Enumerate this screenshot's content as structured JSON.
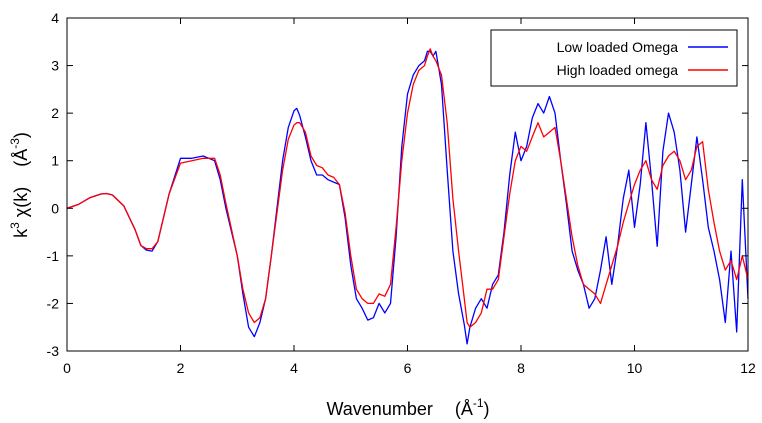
{
  "chart_data": {
    "type": "line",
    "xlabel": "Wavenumber",
    "xunit": "(Å",
    "xunit_sup": "-1",
    "xunit_close": ")",
    "ylabel": "k",
    "ylabel_sup": "3",
    "ylabel_rest": " χ(k)",
    "yunit": "(Å",
    "yunit_sup": "-3",
    "yunit_close": ")",
    "xlim": [
      0,
      12
    ],
    "ylim": [
      -3,
      4
    ],
    "xticks": [
      "0",
      "2",
      "4",
      "6",
      "8",
      "10",
      "12"
    ],
    "yticks": [
      "-3",
      "-2",
      "-1",
      "0",
      "1",
      "2",
      "3",
      "4"
    ],
    "grid": false,
    "legend_position": "top-right",
    "series": [
      {
        "name": "Low loaded Omega",
        "color": "#0000ff",
        "x": [
          0,
          0.2,
          0.4,
          0.6,
          0.7,
          0.8,
          1.0,
          1.2,
          1.3,
          1.4,
          1.5,
          1.6,
          1.8,
          2.0,
          2.2,
          2.4,
          2.6,
          2.7,
          2.8,
          3.0,
          3.1,
          3.2,
          3.3,
          3.4,
          3.5,
          3.6,
          3.8,
          3.9,
          4.0,
          4.05,
          4.1,
          4.2,
          4.3,
          4.4,
          4.5,
          4.6,
          4.7,
          4.8,
          4.9,
          5.0,
          5.1,
          5.2,
          5.3,
          5.4,
          5.5,
          5.6,
          5.7,
          5.8,
          5.9,
          6.0,
          6.1,
          6.2,
          6.3,
          6.35,
          6.4,
          6.45,
          6.5,
          6.6,
          6.7,
          6.8,
          6.9,
          7.0,
          7.05,
          7.1,
          7.2,
          7.3,
          7.4,
          7.5,
          7.6,
          7.7,
          7.8,
          7.9,
          8.0,
          8.1,
          8.2,
          8.3,
          8.4,
          8.5,
          8.6,
          8.7,
          8.8,
          8.9,
          9.0,
          9.1,
          9.2,
          9.3,
          9.4,
          9.5,
          9.6,
          9.7,
          9.8,
          9.9,
          10.0,
          10.1,
          10.2,
          10.3,
          10.4,
          10.5,
          10.6,
          10.7,
          10.8,
          10.9,
          11.0,
          11.1,
          11.2,
          11.3,
          11.4,
          11.5,
          11.6,
          11.7,
          11.8,
          11.9,
          12.0
        ],
        "y": [
          0,
          0.08,
          0.22,
          0.3,
          0.31,
          0.28,
          0.05,
          -0.45,
          -0.78,
          -0.88,
          -0.9,
          -0.7,
          0.3,
          1.05,
          1.05,
          1.1,
          1.0,
          0.6,
          0.0,
          -1.0,
          -1.8,
          -2.5,
          -2.7,
          -2.4,
          -1.9,
          -1.0,
          1.0,
          1.7,
          2.05,
          2.1,
          1.95,
          1.5,
          1.0,
          0.7,
          0.7,
          0.6,
          0.55,
          0.5,
          -0.2,
          -1.2,
          -1.9,
          -2.1,
          -2.35,
          -2.3,
          -2.0,
          -2.2,
          -2.0,
          -0.6,
          1.3,
          2.4,
          2.8,
          3.0,
          3.1,
          3.3,
          3.3,
          3.2,
          3.3,
          2.6,
          0.8,
          -0.9,
          -1.8,
          -2.45,
          -2.85,
          -2.5,
          -2.1,
          -1.9,
          -2.1,
          -1.6,
          -1.4,
          -0.5,
          0.7,
          1.6,
          1.0,
          1.3,
          1.9,
          2.2,
          2.0,
          2.35,
          2.0,
          1.0,
          0.1,
          -0.9,
          -1.3,
          -1.6,
          -2.1,
          -1.9,
          -1.3,
          -0.6,
          -1.6,
          -0.8,
          0.2,
          0.8,
          -0.4,
          0.5,
          1.8,
          0.6,
          -0.8,
          1.2,
          2.0,
          1.6,
          0.8,
          -0.5,
          0.5,
          1.5,
          0.6,
          -0.4,
          -0.9,
          -1.5,
          -2.4,
          -0.9,
          -2.6,
          0.6,
          -1.9
        ]
      },
      {
        "name": "High loaded omega",
        "color": "#ff0000",
        "x": [
          0,
          0.2,
          0.4,
          0.6,
          0.7,
          0.8,
          1.0,
          1.2,
          1.3,
          1.4,
          1.5,
          1.6,
          1.8,
          2.0,
          2.2,
          2.4,
          2.6,
          2.7,
          2.8,
          3.0,
          3.1,
          3.2,
          3.3,
          3.4,
          3.5,
          3.6,
          3.8,
          3.9,
          4.0,
          4.05,
          4.1,
          4.2,
          4.3,
          4.4,
          4.5,
          4.6,
          4.7,
          4.8,
          4.9,
          5.0,
          5.1,
          5.2,
          5.3,
          5.4,
          5.5,
          5.6,
          5.7,
          5.8,
          5.9,
          6.0,
          6.1,
          6.2,
          6.3,
          6.35,
          6.4,
          6.45,
          6.5,
          6.6,
          6.7,
          6.8,
          6.9,
          7.0,
          7.05,
          7.1,
          7.2,
          7.3,
          7.4,
          7.5,
          7.6,
          7.7,
          7.8,
          7.9,
          8.0,
          8.1,
          8.2,
          8.3,
          8.4,
          8.5,
          8.6,
          8.7,
          8.8,
          8.9,
          9.0,
          9.1,
          9.2,
          9.3,
          9.4,
          9.5,
          9.6,
          9.7,
          9.8,
          9.9,
          10.0,
          10.1,
          10.2,
          10.3,
          10.4,
          10.5,
          10.6,
          10.7,
          10.8,
          10.9,
          11.0,
          11.1,
          11.2,
          11.3,
          11.4,
          11.5,
          11.6,
          11.7,
          11.8,
          11.9,
          12.0
        ],
        "y": [
          0,
          0.08,
          0.22,
          0.3,
          0.31,
          0.28,
          0.05,
          -0.45,
          -0.78,
          -0.85,
          -0.85,
          -0.7,
          0.3,
          0.95,
          1.0,
          1.05,
          1.05,
          0.7,
          0.1,
          -1.0,
          -1.7,
          -2.2,
          -2.4,
          -2.3,
          -1.9,
          -1.0,
          0.8,
          1.45,
          1.75,
          1.8,
          1.8,
          1.6,
          1.1,
          0.9,
          0.85,
          0.7,
          0.65,
          0.5,
          -0.1,
          -1.0,
          -1.7,
          -1.9,
          -2.0,
          -2.0,
          -1.8,
          -1.85,
          -1.6,
          -0.4,
          1.0,
          2.0,
          2.6,
          2.9,
          3.0,
          3.2,
          3.35,
          3.2,
          3.1,
          2.8,
          1.8,
          0.2,
          -0.9,
          -1.9,
          -2.4,
          -2.5,
          -2.4,
          -2.2,
          -1.7,
          -1.7,
          -1.5,
          -0.6,
          0.3,
          1.0,
          1.3,
          1.2,
          1.5,
          1.8,
          1.5,
          1.6,
          1.7,
          1.0,
          0.2,
          -0.6,
          -1.2,
          -1.6,
          -1.7,
          -1.8,
          -2.0,
          -1.6,
          -1.2,
          -0.8,
          -0.3,
          0.1,
          0.5,
          0.8,
          1.0,
          0.6,
          0.4,
          0.9,
          1.1,
          1.2,
          1.0,
          0.6,
          0.8,
          1.3,
          1.4,
          0.4,
          -0.3,
          -0.9,
          -1.3,
          -1.1,
          -1.5,
          -1.0,
          -1.5
        ]
      }
    ]
  }
}
